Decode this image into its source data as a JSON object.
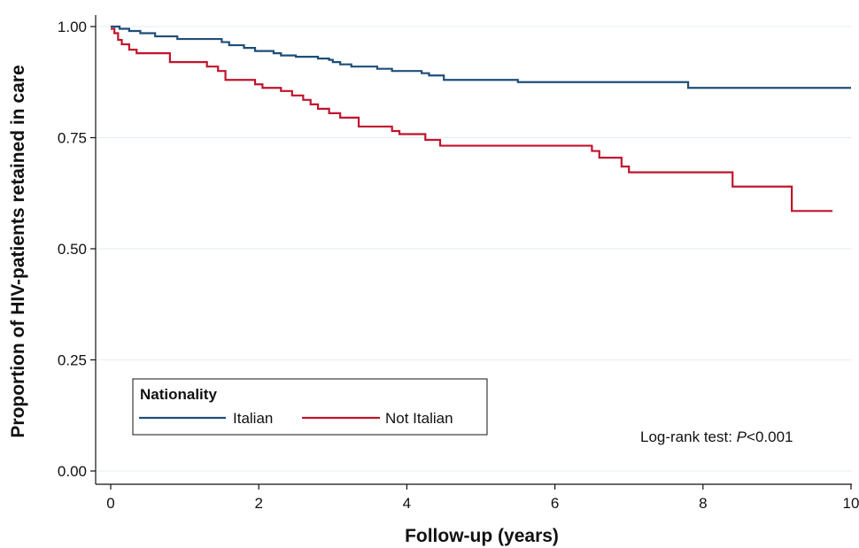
{
  "chart_data": {
    "type": "line",
    "title": "",
    "xlabel": "Follow-up (years)",
    "ylabel": "Proportion of HIV-patients retained in care",
    "xlim": [
      0,
      10
    ],
    "ylim": [
      0,
      1
    ],
    "xticks": [
      0,
      2,
      4,
      6,
      8,
      10
    ],
    "yticks": [
      0,
      0.25,
      0.5,
      0.75,
      1
    ],
    "ytick_labels": [
      "0.00",
      "0.25",
      "0.50",
      "0.75",
      "1.00"
    ],
    "grid": true,
    "legend": {
      "title": "Nationality",
      "placement": "bottom-left",
      "entries": [
        "Italian",
        "Not Italian"
      ]
    },
    "annotation": {
      "prefix": "Log-rank test: ",
      "italic": "P",
      "suffix": "<0.001"
    },
    "series": [
      {
        "name": "Italian",
        "color": "#1f4e79",
        "steps": [
          [
            0,
            1.0
          ],
          [
            0.12,
            0.995
          ],
          [
            0.25,
            0.99
          ],
          [
            0.4,
            0.985
          ],
          [
            0.6,
            0.978
          ],
          [
            0.9,
            0.972
          ],
          [
            1.5,
            0.965
          ],
          [
            1.6,
            0.958
          ],
          [
            1.8,
            0.952
          ],
          [
            1.95,
            0.945
          ],
          [
            2.2,
            0.94
          ],
          [
            2.3,
            0.935
          ],
          [
            2.5,
            0.932
          ],
          [
            2.8,
            0.928
          ],
          [
            2.95,
            0.925
          ],
          [
            2.96,
            0.925
          ],
          [
            3.0,
            0.92
          ],
          [
            3.1,
            0.915
          ],
          [
            3.25,
            0.91
          ],
          [
            3.6,
            0.905
          ],
          [
            3.8,
            0.9
          ],
          [
            4.2,
            0.895
          ],
          [
            4.3,
            0.89
          ],
          [
            4.5,
            0.88
          ],
          [
            5.5,
            0.875
          ],
          [
            7.8,
            0.862
          ],
          [
            10.0,
            0.862
          ]
        ]
      },
      {
        "name": "Not Italian",
        "color": "#c0142d",
        "steps": [
          [
            0,
            0.995
          ],
          [
            0.05,
            0.985
          ],
          [
            0.1,
            0.97
          ],
          [
            0.15,
            0.96
          ],
          [
            0.25,
            0.948
          ],
          [
            0.35,
            0.94
          ],
          [
            0.8,
            0.92
          ],
          [
            1.3,
            0.91
          ],
          [
            1.45,
            0.9
          ],
          [
            1.55,
            0.88
          ],
          [
            1.95,
            0.87
          ],
          [
            2.05,
            0.862
          ],
          [
            2.3,
            0.855
          ],
          [
            2.45,
            0.845
          ],
          [
            2.6,
            0.835
          ],
          [
            2.7,
            0.825
          ],
          [
            2.8,
            0.815
          ],
          [
            2.95,
            0.805
          ],
          [
            3.1,
            0.795
          ],
          [
            3.35,
            0.775
          ],
          [
            3.8,
            0.765
          ],
          [
            3.9,
            0.758
          ],
          [
            4.25,
            0.745
          ],
          [
            4.45,
            0.732
          ],
          [
            6.5,
            0.72
          ],
          [
            6.6,
            0.705
          ],
          [
            6.9,
            0.685
          ],
          [
            7.0,
            0.672
          ],
          [
            8.4,
            0.64
          ],
          [
            9.2,
            0.585
          ],
          [
            9.75,
            0.585
          ]
        ]
      }
    ]
  }
}
